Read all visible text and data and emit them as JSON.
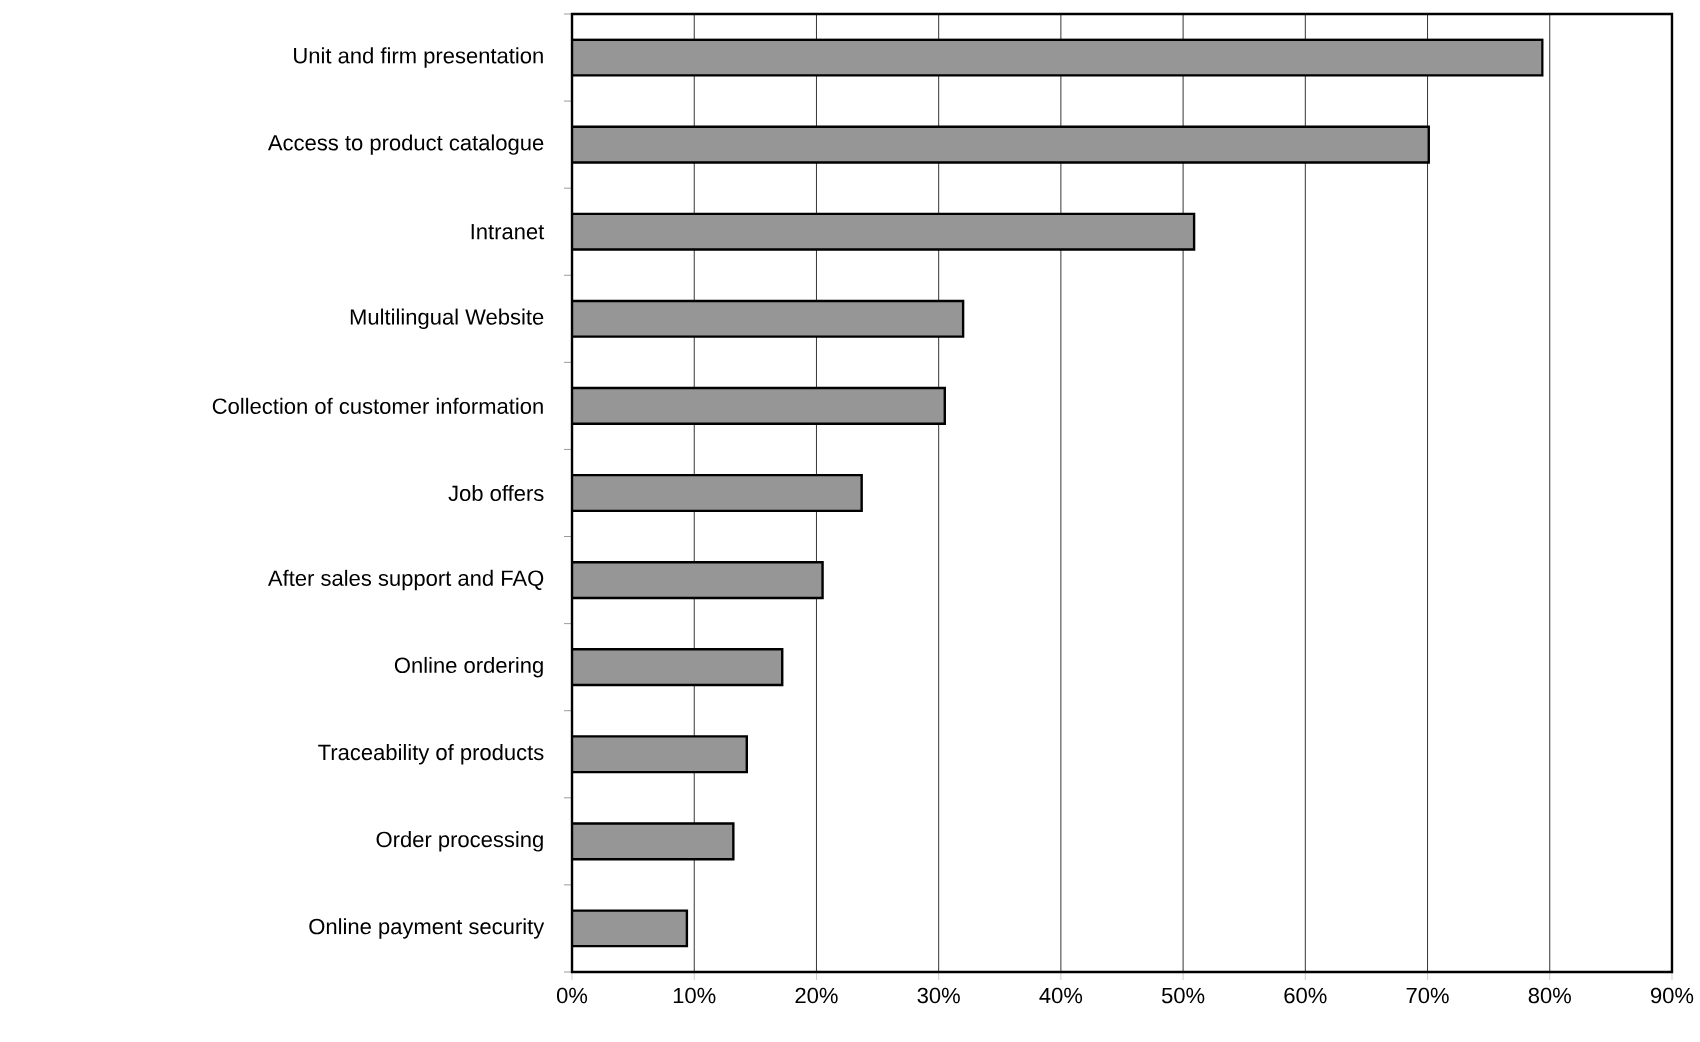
{
  "chart_data": {
    "type": "bar",
    "orientation": "horizontal",
    "categories": [
      "Unit and firm presentation",
      "Access to product catalogue",
      "Intranet",
      "Multilingual Website",
      "Collection of customer information",
      "Job offers",
      "After sales support and FAQ",
      "Online ordering",
      "Traceability of products",
      "Order processing",
      "Online payment security"
    ],
    "values": [
      79.4,
      70.1,
      50.9,
      32.0,
      30.5,
      23.7,
      20.5,
      17.2,
      14.3,
      13.2,
      9.4
    ],
    "color": "#969696",
    "xlim": [
      0,
      90
    ],
    "xticks": [
      {
        "value": 0,
        "label": "0%"
      },
      {
        "value": 10,
        "label": "10%"
      },
      {
        "value": 20,
        "label": "20%"
      },
      {
        "value": 30,
        "label": "30%"
      },
      {
        "value": 40,
        "label": "40%"
      },
      {
        "value": 50,
        "label": "50%"
      },
      {
        "value": 60,
        "label": "60%"
      },
      {
        "value": 70,
        "label": "70%"
      },
      {
        "value": 80,
        "label": "80%"
      },
      {
        "value": 90,
        "label": "90%"
      }
    ],
    "grid": "x"
  }
}
